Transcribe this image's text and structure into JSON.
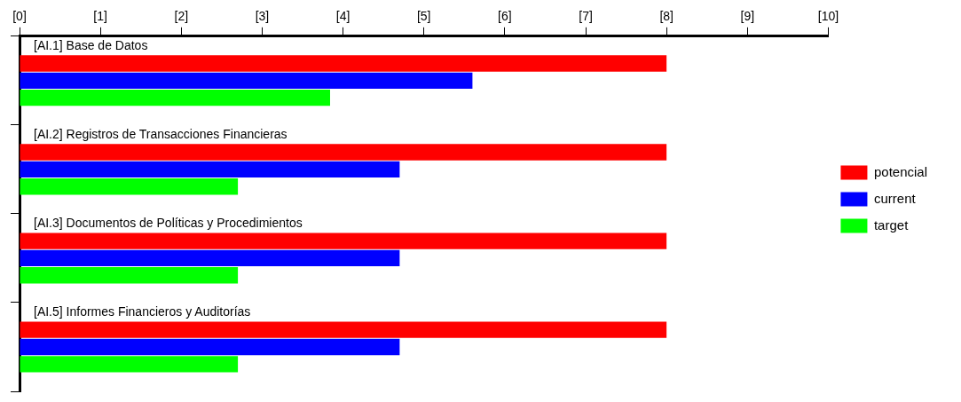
{
  "chart_data": {
    "type": "bar",
    "orientation": "horizontal",
    "categories": [
      "[AI.1] Base de Datos",
      "[AI.2] Registros de Transacciones Financieras",
      "[AI.3] Documentos de Políticas y Procedimientos",
      "[AI.5] Informes Financieros y Auditorías"
    ],
    "series": [
      {
        "name": "potencial",
        "color": "#ff0000",
        "values": [
          8,
          8,
          8,
          8
        ]
      },
      {
        "name": "current",
        "color": "#0000ff",
        "values": [
          5.6,
          4.7,
          4.7,
          4.7
        ]
      },
      {
        "name": "target",
        "color": "#00ff00",
        "values": [
          3.84,
          2.7,
          2.7,
          2.7
        ]
      }
    ],
    "xlim": [
      0,
      10
    ],
    "xticks": [
      {
        "value": 0,
        "label": "[0]"
      },
      {
        "value": 1,
        "label": "[1]"
      },
      {
        "value": 2,
        "label": "[2]"
      },
      {
        "value": 3,
        "label": "[3]"
      },
      {
        "value": 4,
        "label": "[4]"
      },
      {
        "value": 5,
        "label": "[5]"
      },
      {
        "value": 6,
        "label": "[6]"
      },
      {
        "value": 7,
        "label": "[7]"
      },
      {
        "value": 8,
        "label": "[8]"
      },
      {
        "value": 9,
        "label": "[9]"
      },
      {
        "value": 10,
        "label": "[10]"
      }
    ],
    "grid": false,
    "legend": "right"
  }
}
